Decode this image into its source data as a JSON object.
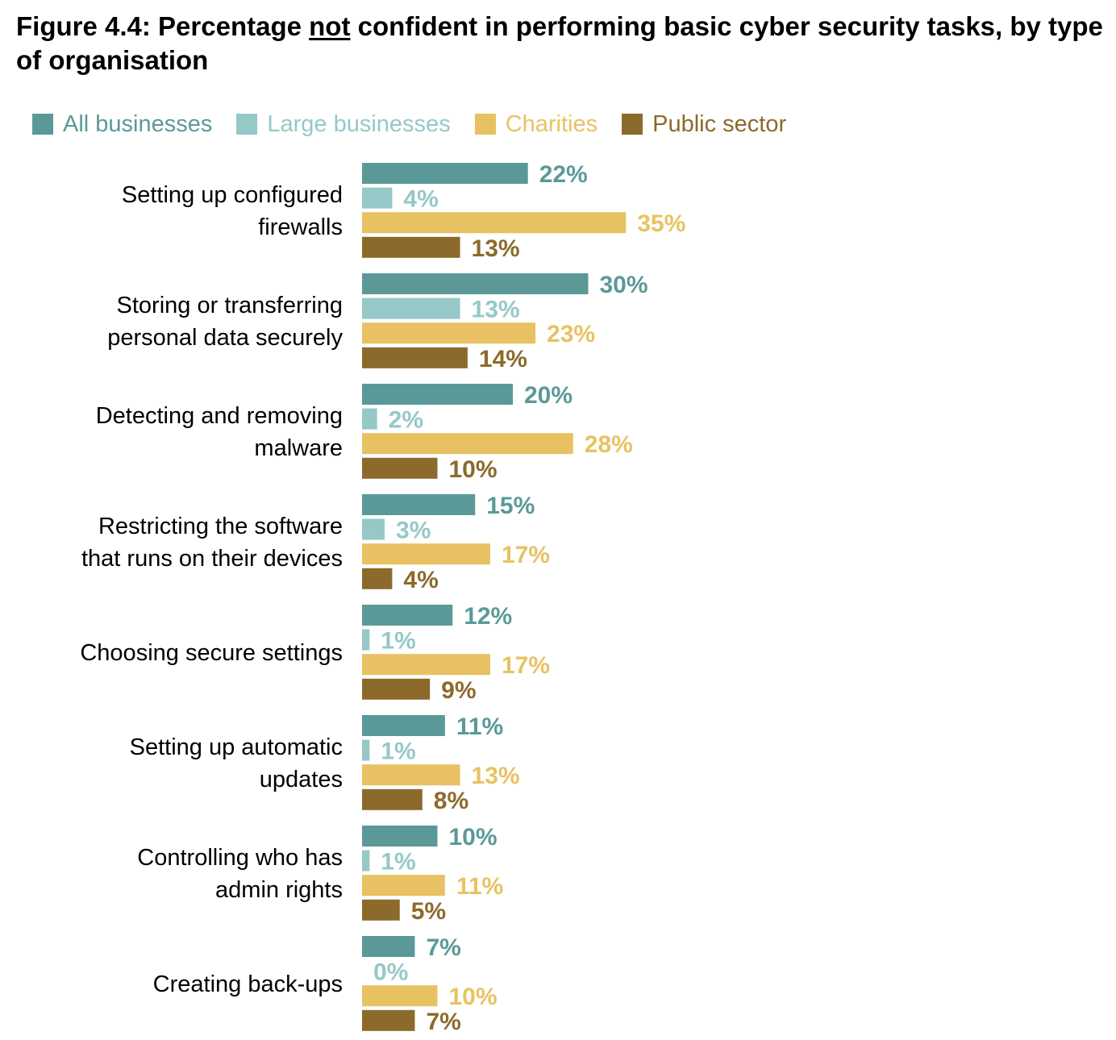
{
  "title": {
    "part1": "Figure 4.4: Percentage ",
    "emphasis": "not",
    "part2": " confident in performing basic cyber security tasks, by type of organisation"
  },
  "colors": {
    "all_businesses": "#5b9999",
    "large_businesses": "#96c8c8",
    "charities": "#e8c262",
    "public_sector": "#8c6a2b"
  },
  "chart_data": {
    "type": "bar",
    "orientation": "horizontal",
    "title": "Figure 4.4: Percentage not confident in performing basic cyber security tasks, by type of organisation",
    "xlabel": "",
    "ylabel": "",
    "value_suffix": "%",
    "xlim": [
      0,
      40
    ],
    "grid": false,
    "legend_position": "top",
    "categories": [
      [
        "Setting up configured",
        "firewalls"
      ],
      [
        "Storing or transferring",
        "personal data securely"
      ],
      [
        "Detecting and removing",
        "malware"
      ],
      [
        "Restricting the software",
        "that runs on their devices"
      ],
      [
        "Choosing secure settings"
      ],
      [
        "Setting up automatic",
        "updates"
      ],
      [
        "Controlling who has",
        "admin rights"
      ],
      [
        "Creating back-ups"
      ]
    ],
    "series": [
      {
        "name": "All businesses",
        "color": "#5b9999",
        "values": [
          22,
          30,
          20,
          15,
          12,
          11,
          10,
          7
        ]
      },
      {
        "name": "Large businesses",
        "color": "#96c8c8",
        "values": [
          4,
          13,
          2,
          3,
          1,
          1,
          1,
          0
        ]
      },
      {
        "name": "Charities",
        "color": "#e8c262",
        "values": [
          35,
          23,
          28,
          17,
          17,
          13,
          11,
          10
        ]
      },
      {
        "name": "Public sector",
        "color": "#8c6a2b",
        "values": [
          13,
          14,
          10,
          4,
          9,
          8,
          5,
          7
        ]
      }
    ]
  }
}
